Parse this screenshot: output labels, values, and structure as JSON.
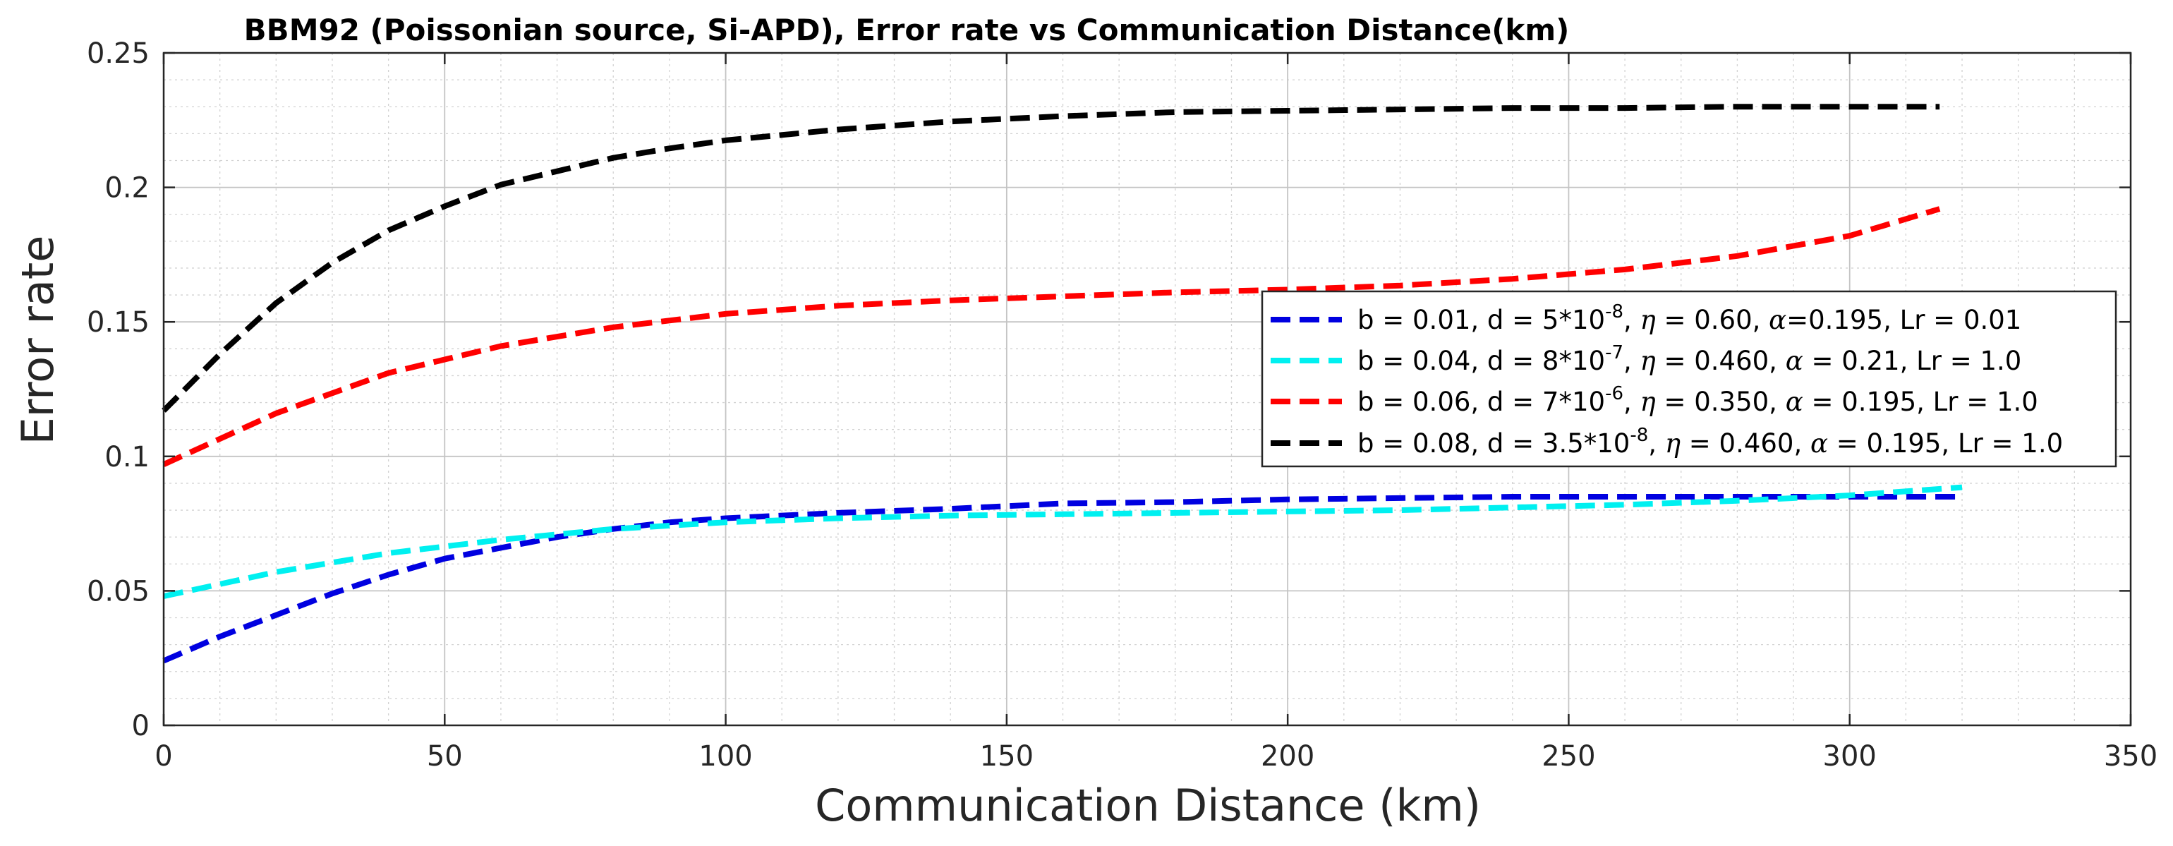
{
  "chart_data": {
    "type": "line",
    "title": "BBM92 (Poissonian source, Si-APD),  Error rate vs Communication Distance(km)",
    "xlabel": "Communication Distance (km)",
    "ylabel": "Error rate",
    "xlim": [
      0,
      350
    ],
    "ylim": [
      0,
      0.25
    ],
    "xticks": [
      0,
      50,
      100,
      150,
      200,
      250,
      300,
      350
    ],
    "yticks": [
      0,
      0.05,
      0.1,
      0.15,
      0.2,
      0.25
    ],
    "xtick_labels": [
      "0",
      "50",
      "100",
      "150",
      "200",
      "250",
      "300",
      "350"
    ],
    "ytick_labels": [
      "0",
      "0.05",
      "0.1",
      "0.15",
      "0.2",
      "0.25"
    ],
    "grid": true,
    "minor_grid": true,
    "legend_position": "right",
    "series": [
      {
        "color": "#0000e0",
        "legend": {
          "pre": "b = 0.01, d = 5*10",
          "sup": "-8",
          "mid": ", ",
          "greek1": "η",
          "mid2": " = 0.60, ",
          "greek2": "α",
          "post": "=0.195, Lr = 0.01"
        },
        "x": [
          0,
          10,
          20,
          30,
          40,
          50,
          60,
          70,
          80,
          90,
          100,
          120,
          140,
          160,
          180,
          200,
          220,
          240,
          260,
          280,
          300,
          320
        ],
        "y": [
          0.024,
          0.033,
          0.041,
          0.049,
          0.056,
          0.062,
          0.066,
          0.07,
          0.073,
          0.0755,
          0.077,
          0.079,
          0.0805,
          0.0825,
          0.083,
          0.084,
          0.0845,
          0.085,
          0.085,
          0.085,
          0.085,
          0.085
        ]
      },
      {
        "color": "#00f0f0",
        "legend": {
          "pre": "b = 0.04, d = 8*10",
          "sup": "-7",
          "mid": ", ",
          "greek1": "η",
          "mid2": " = 0.460, ",
          "greek2": "α",
          "post": " = 0.21, Lr = 1.0"
        },
        "x": [
          0,
          20,
          40,
          60,
          80,
          100,
          120,
          140,
          160,
          180,
          200,
          220,
          240,
          260,
          280,
          300,
          320
        ],
        "y": [
          0.048,
          0.057,
          0.064,
          0.069,
          0.073,
          0.0755,
          0.077,
          0.078,
          0.0785,
          0.079,
          0.0795,
          0.08,
          0.081,
          0.082,
          0.0835,
          0.0855,
          0.0885
        ]
      },
      {
        "color": "#ff0000",
        "legend": {
          "pre": "b = 0.06, d = 7*10",
          "sup": "-6",
          "mid": ", ",
          "greek1": "η",
          "mid2": " = 0.350, ",
          "greek2": "α",
          "post": " = 0.195, Lr = 1.0"
        },
        "x": [
          0,
          20,
          40,
          60,
          80,
          100,
          120,
          140,
          160,
          180,
          200,
          220,
          240,
          260,
          280,
          300,
          316
        ],
        "y": [
          0.097,
          0.116,
          0.131,
          0.141,
          0.148,
          0.153,
          0.156,
          0.158,
          0.1595,
          0.161,
          0.162,
          0.1635,
          0.166,
          0.1695,
          0.1745,
          0.182,
          0.192
        ]
      },
      {
        "color": "#000000",
        "legend": {
          "pre": "b = 0.08, d = 3.5*10",
          "sup": "-8",
          "mid": ", ",
          "greek1": "η",
          "mid2": " = 0.460, ",
          "greek2": "α",
          "post": " = 0.195, Lr = 1.0"
        },
        "x": [
          0,
          10,
          20,
          30,
          40,
          50,
          60,
          70,
          80,
          90,
          100,
          120,
          140,
          160,
          180,
          200,
          220,
          240,
          260,
          280,
          300,
          316
        ],
        "y": [
          0.117,
          0.138,
          0.157,
          0.172,
          0.184,
          0.193,
          0.201,
          0.206,
          0.211,
          0.2145,
          0.2175,
          0.2215,
          0.2245,
          0.2265,
          0.228,
          0.2285,
          0.229,
          0.2295,
          0.2295,
          0.23,
          0.23,
          0.23
        ]
      }
    ]
  }
}
